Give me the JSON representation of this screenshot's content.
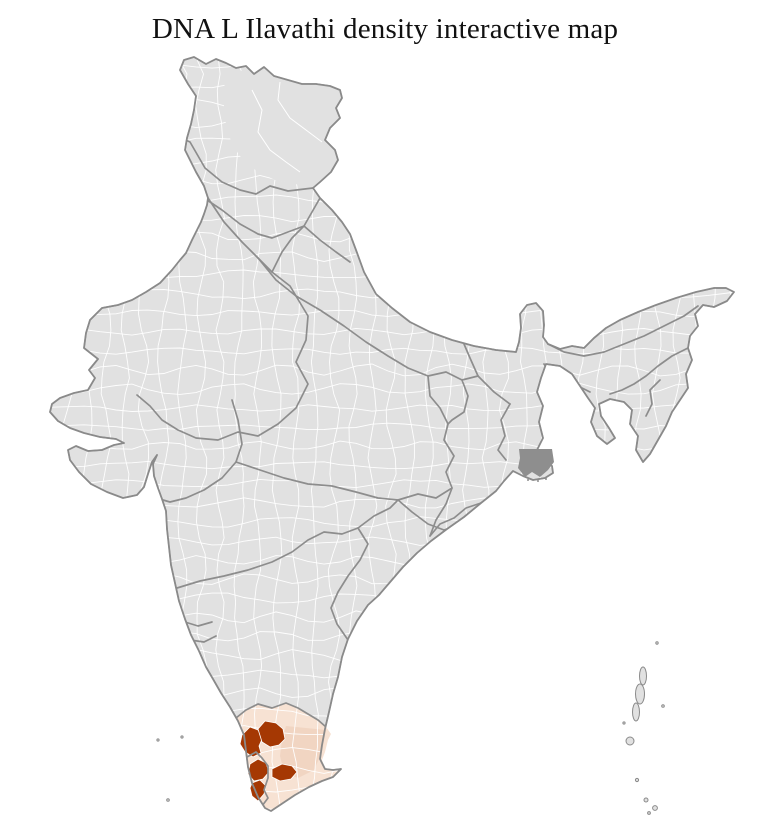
{
  "title": "DNA L Ilavathi density interactive map",
  "map": {
    "region": "India",
    "type": "district-level choropleth",
    "highlighted_area": "southern India (Kerala / Tamil Nadu region)",
    "highlight_levels": [
      {
        "level": "high-density",
        "color": "#a53803",
        "patch_count": 5
      },
      {
        "level": "low-density",
        "color": "#f7e2d3"
      }
    ]
  },
  "colors": {
    "background": "#ffffff",
    "land_fill": "#e1e1e1",
    "district_border": "#ffffff",
    "state_border": "#8d8d8d",
    "outline": "#8a8a8a",
    "highlight_high": "#a53803",
    "highlight_low": "#f7e2d3",
    "highlight_mid": "#f1d5c2",
    "delta": "#8e8e8e",
    "title_color": "#111111"
  }
}
